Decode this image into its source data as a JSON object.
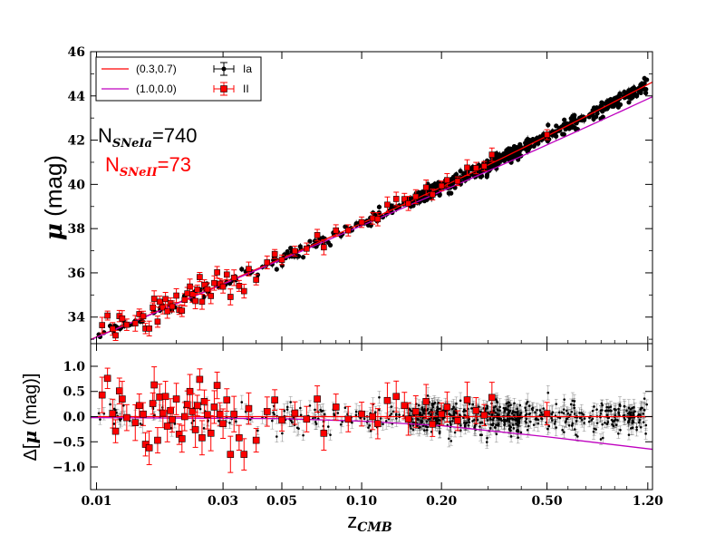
{
  "chart_data": [
    {
      "type": "scatter",
      "panel": "top",
      "xscale": "log",
      "xlim": [
        0.0095,
        1.25
      ],
      "ylim": [
        32.8,
        46.0
      ],
      "ylabel_symbol": "μ",
      "ylabel_unit": "(mag)",
      "yticks": [
        34,
        36,
        38,
        40,
        42,
        44,
        46
      ],
      "annotations": [
        {
          "label": "N",
          "sub": "SNeIa",
          "text": "=740",
          "color": "#000000"
        },
        {
          "label": "N",
          "sub": "SNeII",
          "text": "=73",
          "color": "#ff0000"
        }
      ],
      "legend": {
        "position": "top-left",
        "entries": [
          {
            "label": "(0.3,0.7)",
            "kind": "line",
            "color": "#ff0000"
          },
          {
            "label": "(1.0,0.0)",
            "kind": "line",
            "color": "#bf00bf"
          },
          {
            "label": "Ia",
            "kind": "errorbar-point",
            "color": "#000000"
          },
          {
            "label": "II",
            "kind": "errorbar-square",
            "color": "#ff0000"
          }
        ]
      },
      "models": [
        {
          "name": "(0.3,0.7)",
          "Om": 0.3,
          "OL": 0.7,
          "color": "#ff0000"
        },
        {
          "name": "(1.0,0.0)",
          "Om": 1.0,
          "OL": 0.0,
          "color": "#bf00bf"
        }
      ],
      "series": [
        {
          "name": "Ia",
          "count": 740,
          "color": "#000000",
          "marker": "circle",
          "scatter_mag": 0.15,
          "err_mag": 0.12
        },
        {
          "name": "II",
          "count": 73,
          "color": "#ff0000",
          "marker": "square",
          "scatter_mag": 0.3,
          "err_mag": 0.28
        }
      ]
    },
    {
      "type": "scatter",
      "panel": "bottom",
      "xscale": "log",
      "xlim": [
        0.0095,
        1.25
      ],
      "ylim": [
        -1.45,
        1.45
      ],
      "xlabel_main": "z",
      "xlabel_sub": "CMB",
      "ylabel_prefix": "Δ[",
      "ylabel_symbol": "μ",
      "ylabel_suffix": " (mag)]",
      "xticks": [
        0.01,
        0.03,
        0.05,
        0.1,
        0.2,
        0.5,
        1.2
      ],
      "xtick_labels": [
        "0.01",
        "0.03",
        "0.05",
        "0.10",
        "0.20",
        "0.50",
        "1.20"
      ],
      "yticks": [
        -1.0,
        -0.5,
        0.0,
        0.5,
        1.0
      ],
      "ytick_labels": [
        "−1.0",
        "−0.5",
        "0.0",
        "0.5",
        "1.0"
      ],
      "residuals": [
        {
          "name": "(0.3,0.7)",
          "color": "#ff0000",
          "points": [
            [
              0.01,
              0.0
            ],
            [
              1.25,
              0.0
            ]
          ]
        },
        {
          "name": "(1.0,0.0)",
          "color": "#bf00bf",
          "points": [
            [
              0.0095,
              -0.02
            ],
            [
              0.05,
              -0.04
            ],
            [
              0.1,
              -0.09
            ],
            [
              0.2,
              -0.18
            ],
            [
              0.5,
              -0.4
            ],
            [
              1.25,
              -0.65
            ]
          ]
        }
      ],
      "series_II_points": [
        [
          0.0105,
          0.43
        ],
        [
          0.011,
          0.76
        ],
        [
          0.0115,
          0.06
        ],
        [
          0.0118,
          -0.29
        ],
        [
          0.0122,
          0.51
        ],
        [
          0.0125,
          0.35
        ],
        [
          0.013,
          -0.02
        ],
        [
          0.014,
          -0.12
        ],
        [
          0.0145,
          0.22
        ],
        [
          0.015,
          0.05
        ],
        [
          0.0153,
          -0.55
        ],
        [
          0.0158,
          -0.62
        ],
        [
          0.0163,
          0.26
        ],
        [
          0.0165,
          0.63
        ],
        [
          0.017,
          -0.47
        ],
        [
          0.0173,
          0.39
        ],
        [
          0.0178,
          0.07
        ],
        [
          0.0182,
          0.4
        ],
        [
          0.0185,
          -0.19
        ],
        [
          0.019,
          0.12
        ],
        [
          0.0193,
          -0.06
        ],
        [
          0.02,
          0.35
        ],
        [
          0.0205,
          -0.35
        ],
        [
          0.021,
          -0.44
        ],
        [
          0.0215,
          0.0
        ],
        [
          0.022,
          0.24
        ],
        [
          0.0225,
          0.5
        ],
        [
          0.023,
          0.1
        ],
        [
          0.0236,
          -0.26
        ],
        [
          0.024,
          0.22
        ],
        [
          0.0245,
          0.74
        ],
        [
          0.025,
          -0.42
        ],
        [
          0.0255,
          0.3
        ],
        [
          0.0262,
          0.04
        ],
        [
          0.027,
          -0.33
        ],
        [
          0.0278,
          0.19
        ],
        [
          0.0285,
          0.62
        ],
        [
          0.0292,
          0.05
        ],
        [
          0.03,
          -0.14
        ],
        [
          0.031,
          0.33
        ],
        [
          0.032,
          -0.75
        ],
        [
          0.033,
          0.05
        ],
        [
          0.0345,
          -0.42
        ],
        [
          0.036,
          -0.75
        ],
        [
          0.0375,
          0.16
        ],
        [
          0.04,
          -0.47
        ],
        [
          0.044,
          0.1
        ],
        [
          0.047,
          0.33
        ],
        [
          0.05,
          -0.07
        ],
        [
          0.056,
          0.07
        ],
        [
          0.062,
          -0.05
        ],
        [
          0.068,
          0.35
        ],
        [
          0.072,
          -0.33
        ],
        [
          0.08,
          0.19
        ],
        [
          0.089,
          -0.05
        ],
        [
          0.1,
          0.05
        ],
        [
          0.11,
          0.0
        ],
        [
          0.115,
          -0.14
        ],
        [
          0.125,
          0.32
        ],
        [
          0.135,
          0.4
        ],
        [
          0.145,
          0.22
        ],
        [
          0.15,
          -0.05
        ],
        [
          0.16,
          0.1
        ],
        [
          0.175,
          0.3
        ],
        [
          0.185,
          -0.15
        ],
        [
          0.2,
          0.05
        ],
        [
          0.21,
          0.19
        ],
        [
          0.23,
          -0.08
        ],
        [
          0.25,
          0.33
        ],
        [
          0.27,
          0.12
        ],
        [
          0.29,
          0.03
        ],
        [
          0.31,
          0.38
        ],
        [
          0.5,
          0.06
        ]
      ]
    }
  ]
}
